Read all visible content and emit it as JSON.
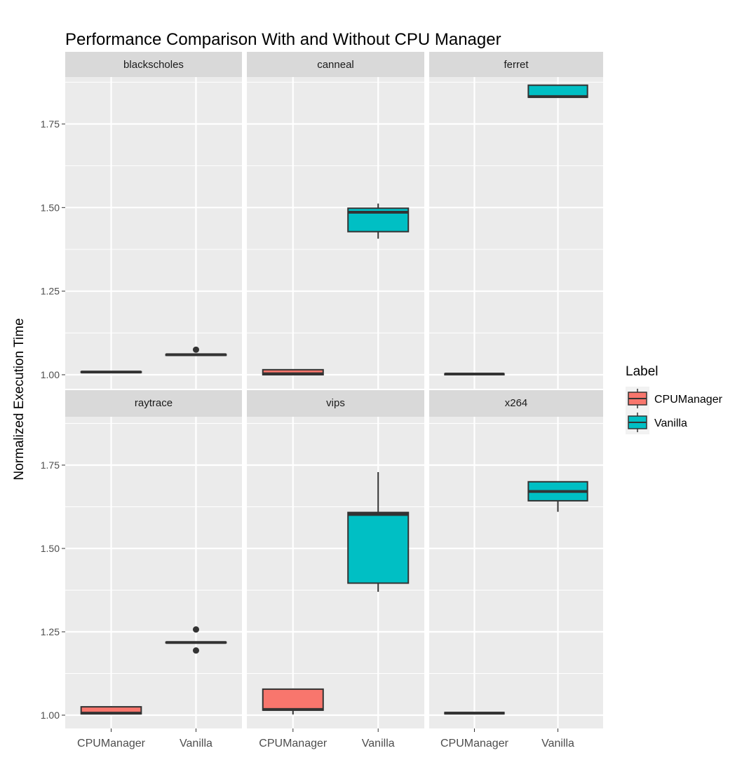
{
  "chart_data": {
    "type": "boxplot",
    "title": "Performance Comparison With and Without CPU Manager",
    "xlabel": "",
    "ylabel": "Normalized Execution Time",
    "ylim": [
      0.95,
      1.9
    ],
    "yticks": [
      1.0,
      1.25,
      1.5,
      1.75
    ],
    "ytick_labels": [
      "1.00",
      "1.25",
      "1.50",
      "1.75"
    ],
    "categories": [
      "CPUManager",
      "Vanilla"
    ],
    "grid": true,
    "legend": {
      "title": "Label",
      "position": "right",
      "entries": [
        {
          "name": "CPUManager",
          "color": "#F8766D"
        },
        {
          "name": "Vanilla",
          "color": "#00BFC4"
        }
      ]
    },
    "facets": [
      {
        "name": "blackscholes",
        "boxes": [
          {
            "label": "CPUManager",
            "min": 1.007,
            "q1": 1.007,
            "median": 1.008,
            "q3": 1.009,
            "max": 1.009,
            "outliers": []
          },
          {
            "label": "Vanilla",
            "min": 1.058,
            "q1": 1.058,
            "median": 1.06,
            "q3": 1.061,
            "max": 1.062,
            "outliers": [
              1.075
            ]
          }
        ]
      },
      {
        "name": "canneal",
        "boxes": [
          {
            "label": "CPUManager",
            "min": 1.0,
            "q1": 1.0,
            "median": 1.003,
            "q3": 1.015,
            "max": 1.016,
            "outliers": []
          },
          {
            "label": "Vanilla",
            "min": 1.407,
            "q1": 1.428,
            "median": 1.486,
            "q3": 1.498,
            "max": 1.512,
            "outliers": []
          }
        ]
      },
      {
        "name": "ferret",
        "boxes": [
          {
            "label": "CPUManager",
            "min": 1.0,
            "q1": 1.0,
            "median": 1.002,
            "q3": 1.003,
            "max": 1.003,
            "outliers": []
          },
          {
            "label": "Vanilla",
            "min": 1.83,
            "q1": 1.83,
            "median": 1.832,
            "q3": 1.866,
            "max": 1.866,
            "outliers": []
          }
        ]
      },
      {
        "name": "raytrace",
        "boxes": [
          {
            "label": "CPUManager",
            "min": 1.004,
            "q1": 1.004,
            "median": 1.006,
            "q3": 1.025,
            "max": 1.027,
            "outliers": []
          },
          {
            "label": "Vanilla",
            "min": 1.217,
            "q1": 1.217,
            "median": 1.218,
            "q3": 1.219,
            "max": 1.219,
            "outliers": [
              1.257,
              1.194
            ]
          }
        ]
      },
      {
        "name": "vips",
        "boxes": [
          {
            "label": "CPUManager",
            "min": 1.002,
            "q1": 1.015,
            "median": 1.017,
            "q3": 1.078,
            "max": 1.08,
            "outliers": []
          },
          {
            "label": "Vanilla",
            "min": 1.37,
            "q1": 1.396,
            "median": 1.602,
            "q3": 1.608,
            "max": 1.729,
            "outliers": []
          }
        ]
      },
      {
        "name": "x264",
        "boxes": [
          {
            "label": "CPUManager",
            "min": 1.004,
            "q1": 1.004,
            "median": 1.006,
            "q3": 1.008,
            "max": 1.008,
            "outliers": []
          },
          {
            "label": "Vanilla",
            "min": 1.61,
            "q1": 1.643,
            "median": 1.671,
            "q3": 1.7,
            "max": 1.7,
            "outliers": []
          }
        ]
      }
    ]
  }
}
